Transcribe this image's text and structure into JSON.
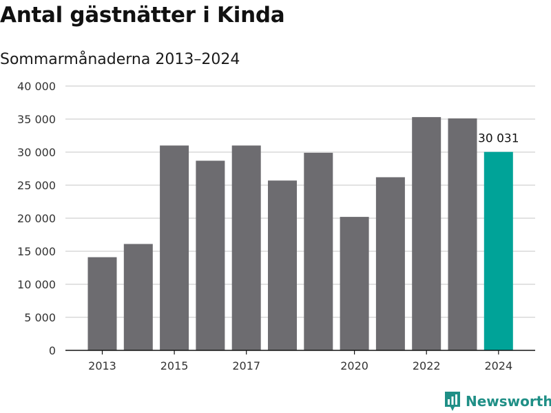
{
  "title": "Antal gästnätter i Kinda",
  "subtitle": "Sommarmånaderna 2013–2024",
  "brand": "Newsworthy",
  "colors": {
    "bar": "#6d6c70",
    "highlight": "#00a398",
    "grid": "#d9d9d9",
    "axis": "#111111",
    "brand": "#1f8f86"
  },
  "chart_data": {
    "type": "bar",
    "categories": [
      "2013",
      "2014",
      "2015",
      "2016",
      "2017",
      "2018",
      "2019",
      "2020",
      "2021",
      "2022",
      "2023",
      "2024"
    ],
    "x_tick_labels": [
      "2013",
      "",
      "2015",
      "",
      "2017",
      "",
      "",
      "2020",
      "",
      "2022",
      "",
      "2024"
    ],
    "values": [
      14100,
      16100,
      31000,
      28700,
      31000,
      25700,
      29900,
      20200,
      26200,
      35300,
      35100,
      30031
    ],
    "highlight_index": 11,
    "data_labels": [
      {
        "index": 11,
        "text": "30 031"
      }
    ],
    "y_ticks": [
      0,
      5000,
      10000,
      15000,
      20000,
      25000,
      30000,
      35000,
      40000
    ],
    "y_tick_labels": [
      "0",
      "5 000",
      "10 000",
      "15 000",
      "20 000",
      "25 000",
      "30 000",
      "35 000",
      "40 000"
    ],
    "ylim": [
      0,
      40000
    ],
    "grid": true,
    "title": "Antal gästnätter i Kinda",
    "subtitle": "Sommarmånaderna 2013–2024",
    "xlabel": "",
    "ylabel": ""
  }
}
